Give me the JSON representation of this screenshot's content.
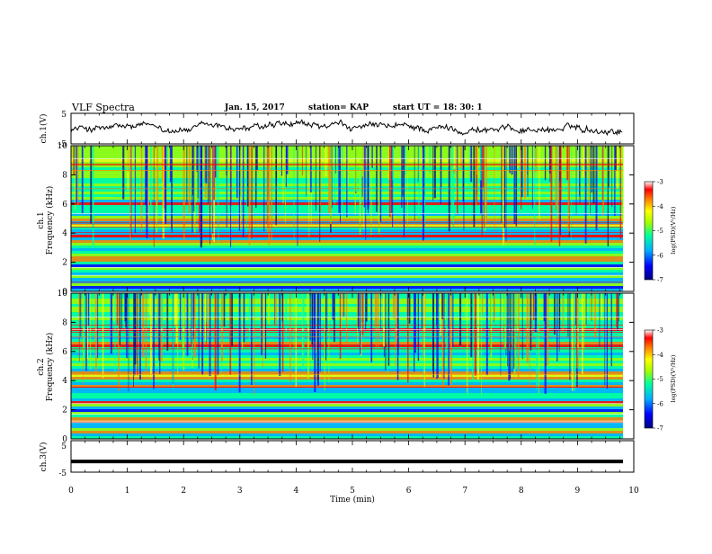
{
  "header": {
    "title": "VLF Spectra",
    "date": "Jan. 15, 2017",
    "station": "station= KAP",
    "start": "start UT =  18: 30: 1"
  },
  "chart_data": [
    {
      "type": "line",
      "panel": "ch1-waveform",
      "ylabel": "ch.1(V)",
      "ylim": [
        -5,
        5
      ],
      "yticks": [
        "5",
        "-5"
      ],
      "xlim": [
        0,
        10
      ],
      "series": [
        {
          "values_range": [
            -2,
            3
          ],
          "trend": "noisy fluctuation around 0 V"
        }
      ]
    },
    {
      "type": "heatmap",
      "panel": "ch1-spectrogram",
      "ylabel": "Frequency (kHz)",
      "channel_label": "ch.1",
      "ylim": [
        0,
        10
      ],
      "yticks": [
        "0",
        "2",
        "4",
        "6",
        "8",
        "10"
      ],
      "xlim": [
        0,
        10
      ],
      "colorbar": {
        "label": "log(PSD)(V²/Hz)",
        "range": [
          -7,
          -3
        ],
        "ticks": [
          "-3",
          "-4",
          "-5",
          "-6",
          "-7"
        ]
      }
    },
    {
      "type": "heatmap",
      "panel": "ch2-spectrogram",
      "ylabel": "Frequency (kHz)",
      "channel_label": "ch.2",
      "ylim": [
        0,
        10
      ],
      "yticks": [
        "0",
        "2",
        "4",
        "6",
        "8",
        "10"
      ],
      "xlim": [
        0,
        10
      ],
      "colorbar": {
        "label": "log(PSD)(V²/Hz)",
        "range": [
          -7,
          -3
        ],
        "ticks": [
          "-3",
          "-4",
          "-5",
          "-6",
          "-7"
        ]
      }
    },
    {
      "type": "line",
      "panel": "ch3-waveform",
      "ylabel": "ch.3(V)",
      "ylim": [
        -5,
        5
      ],
      "yticks": [
        "5",
        "-5"
      ],
      "xlim": [
        0,
        10
      ],
      "series": [
        {
          "values": [
            -1.6,
            -1.6
          ],
          "trend": "flat constant line"
        }
      ]
    }
  ],
  "xaxis": {
    "label": "Time (min)",
    "ticks": [
      "0",
      "1",
      "2",
      "3",
      "4",
      "5",
      "6",
      "7",
      "8",
      "9",
      "10"
    ]
  },
  "colors": {
    "colormap": [
      "#000080",
      "#0000ff",
      "#00b0ff",
      "#00ffa0",
      "#a0ff00",
      "#ffff00",
      "#ff8000",
      "#ff0000",
      "#ffffff"
    ]
  }
}
